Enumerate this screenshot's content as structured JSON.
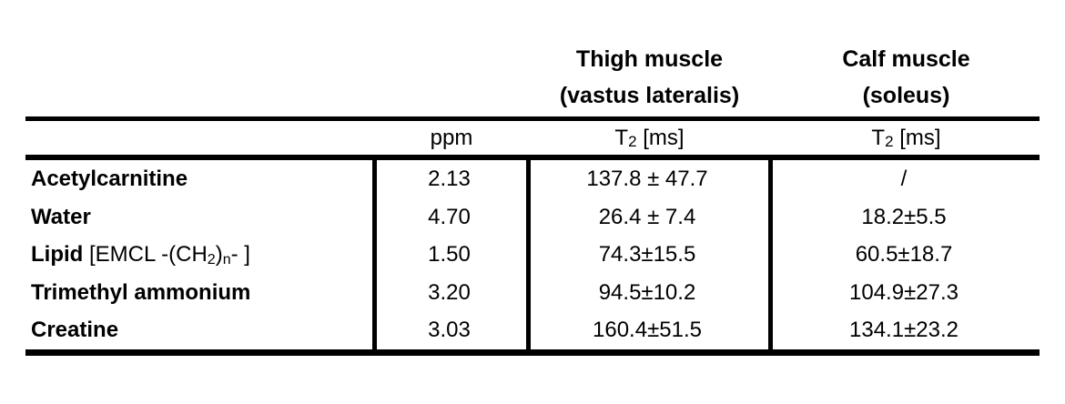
{
  "page": {
    "background_color": "#ffffff",
    "text_color": "#000000"
  },
  "table": {
    "column_groups": [
      {
        "title": "Thigh muscle",
        "subtitle": "(vastus lateralis)"
      },
      {
        "title": "Calf muscle",
        "subtitle": "(soleus)"
      }
    ],
    "subheaders": {
      "ppm_label": "ppm",
      "t2_base": "T",
      "t2_sub": "2",
      "t2_unit": " [ms]"
    },
    "rows": [
      {
        "name": "Acetylcarnitine",
        "ppm": "2.13",
        "thigh_t2": "137.8 ± 47.7",
        "calf_t2": "/"
      },
      {
        "name": "Water",
        "ppm": "4.70",
        "thigh_t2": "26.4 ± 7.4",
        "calf_t2": "18.2±5.5"
      },
      {
        "name": "Lipid",
        "name_suffix_1": " [EMCL -(CH",
        "name_sub_1": "2",
        "name_suffix_2": ")",
        "name_sub_2": "n",
        "name_suffix_3": "- ]",
        "ppm": "1.50",
        "thigh_t2": "74.3±15.5",
        "calf_t2": "60.5±18.7"
      },
      {
        "name": "Trimethyl ammonium",
        "ppm": "3.20",
        "thigh_t2": "94.5±10.2",
        "calf_t2": "104.9±27.3"
      },
      {
        "name": "Creatine",
        "ppm": "3.03",
        "thigh_t2": "160.4±51.5",
        "calf_t2": "134.1±23.2"
      }
    ]
  }
}
